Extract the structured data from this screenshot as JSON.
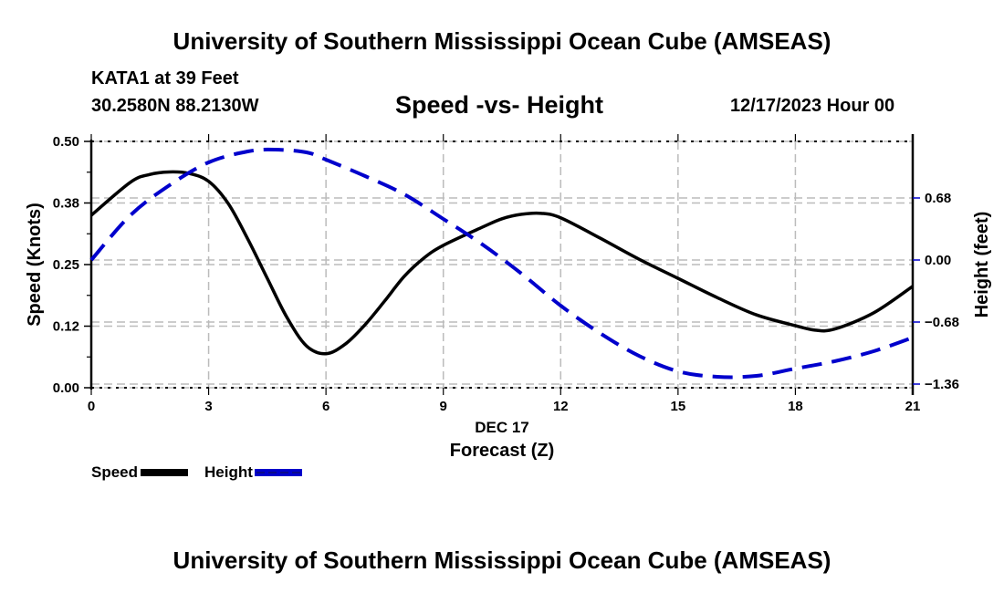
{
  "header": {
    "main_title": "University of Southern Mississippi Ocean Cube (AMSEAS)",
    "station": "KATA1 at 39 Feet",
    "coordinates": "30.2580N  88.2130W",
    "chart_title": "Speed -vs- Height",
    "datetime": "12/17/2023 Hour 00"
  },
  "footer": {
    "title": "University of Southern Mississippi Ocean Cube (AMSEAS)"
  },
  "legend": {
    "items": [
      {
        "label": "Speed",
        "color": "#000000",
        "style": "solid"
      },
      {
        "label": "Height",
        "color": "#0000cc",
        "style": "dashed"
      }
    ]
  },
  "chart_data": {
    "type": "line",
    "title": "Speed -vs- Height",
    "xlabel": "Forecast (Z)",
    "xsublabel": "DEC 17",
    "ylabel": "Speed (Knots)",
    "y2label": "Height (feet)",
    "xlim": [
      0,
      21
    ],
    "ylim": [
      0,
      0.5
    ],
    "y2lim": [
      -1.4,
      1.3
    ],
    "x_ticks": [
      0,
      3,
      6,
      9,
      12,
      15,
      18,
      21
    ],
    "x_tick_labels": [
      "0",
      "3",
      "6",
      "9",
      "12",
      "15",
      "18",
      "21"
    ],
    "y_ticks": [
      0.0,
      0.125,
      0.25,
      0.375,
      0.5
    ],
    "y_tick_labels": [
      "0.00",
      "0.12",
      "0.25",
      "0.38",
      "0.50"
    ],
    "y2_ticks": [
      -1.36,
      -0.68,
      0.0,
      0.68
    ],
    "y2_tick_labels": [
      "−1.36",
      "−0.68",
      "0.00",
      "0.68"
    ],
    "grid": true,
    "legend_position": "bottom-left",
    "series": [
      {
        "name": "Speed",
        "axis": "left",
        "color": "#000000",
        "style": "solid",
        "x": [
          0,
          1,
          1.5,
          2,
          2.5,
          3,
          3.5,
          4,
          4.5,
          5,
          5.5,
          6,
          6.5,
          7,
          7.5,
          8,
          8.5,
          9,
          10,
          10.5,
          11,
          11.5,
          12,
          13,
          14,
          15,
          16,
          17,
          18,
          18.5,
          19,
          20,
          21
        ],
        "values": [
          0.35,
          0.417,
          0.433,
          0.438,
          0.435,
          0.419,
          0.374,
          0.302,
          0.222,
          0.143,
          0.085,
          0.069,
          0.089,
          0.128,
          0.176,
          0.226,
          0.263,
          0.289,
          0.326,
          0.343,
          0.352,
          0.354,
          0.345,
          0.304,
          0.261,
          0.222,
          0.183,
          0.148,
          0.126,
          0.117,
          0.119,
          0.152,
          0.206
        ]
      },
      {
        "name": "Height",
        "axis": "right",
        "color": "#0000cc",
        "style": "dashed",
        "x": [
          0,
          1,
          2,
          3,
          4,
          4.7,
          5.5,
          6,
          7,
          8,
          9,
          10,
          11,
          12,
          13,
          14,
          15,
          16,
          17,
          18,
          19,
          20,
          21
        ],
        "values": [
          0.0,
          0.49,
          0.82,
          1.07,
          1.19,
          1.21,
          1.18,
          1.1,
          0.92,
          0.72,
          0.45,
          0.17,
          -0.15,
          -0.5,
          -0.8,
          -1.05,
          -1.22,
          -1.28,
          -1.27,
          -1.19,
          -1.11,
          -1.0,
          -0.85
        ]
      }
    ]
  }
}
